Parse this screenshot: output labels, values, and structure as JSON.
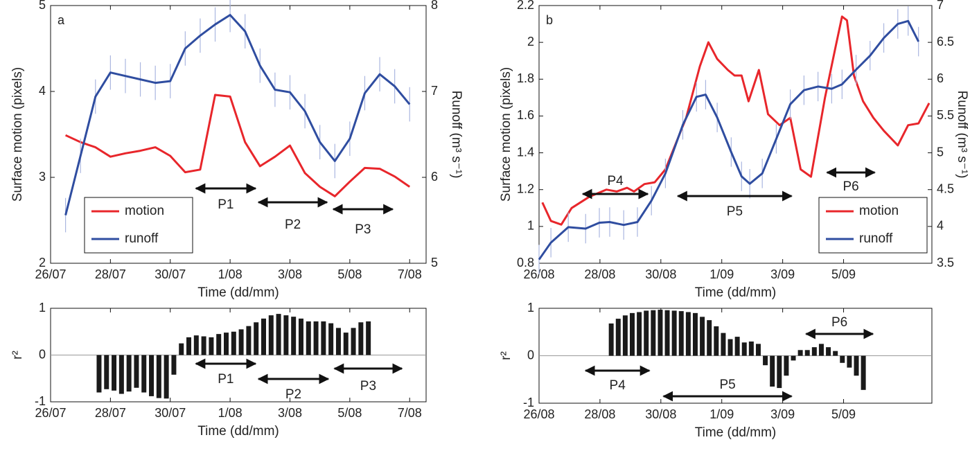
{
  "chart_data": [
    {
      "type": "line",
      "panel_label": "a",
      "xlabel": "Time (dd/mm)",
      "ylabel": "Surface motion (pixels)",
      "y2label": "Runoff (m³ s⁻¹)",
      "xlim": [
        0,
        12.55
      ],
      "xticks": [
        {
          "value": 0,
          "label": "26/07"
        },
        {
          "value": 2,
          "label": "28/07"
        },
        {
          "value": 4,
          "label": "30/07"
        },
        {
          "value": 6,
          "label": "1/08"
        },
        {
          "value": 8,
          "label": "3/08"
        },
        {
          "value": 10,
          "label": "5/08"
        },
        {
          "value": 12,
          "label": "7/08"
        }
      ],
      "ylim": [
        2,
        5
      ],
      "yticks": [
        2,
        3,
        4,
        5
      ],
      "y2lim": [
        5,
        8
      ],
      "y2ticks": [
        5,
        6,
        7,
        8
      ],
      "legend": "lower left",
      "x": [
        0.5,
        1,
        1.5,
        2,
        2.5,
        3,
        3.5,
        4,
        4.5,
        5,
        5.5,
        6,
        6.5,
        7,
        7.5,
        8,
        8.5,
        9,
        9.5,
        10,
        10.5,
        11,
        11.5,
        12
      ],
      "series": [
        {
          "name": "motion",
          "color": "#e8262b",
          "values": [
            3.49,
            3.41,
            3.35,
            3.24,
            3.28,
            3.31,
            3.35,
            3.25,
            3.06,
            3.09,
            3.96,
            3.94,
            3.41,
            3.13,
            3.24,
            3.37,
            3.05,
            2.89,
            2.78,
            2.95,
            3.11,
            3.1,
            3.01,
            2.89
          ]
        },
        {
          "name": "runoff",
          "color": "#2f4da0",
          "axis": "y2",
          "error": 0.2,
          "values": [
            5.56,
            6.25,
            6.94,
            7.22,
            7.18,
            7.14,
            7.1,
            7.12,
            7.5,
            7.65,
            7.78,
            7.89,
            7.7,
            7.3,
            7.02,
            6.99,
            6.77,
            6.41,
            6.19,
            6.45,
            6.98,
            7.2,
            7.06,
            6.85
          ]
        }
      ],
      "periods": [
        {
          "label": "P1",
          "start": 4.79,
          "end": 6.92
        },
        {
          "label": "P2",
          "start": 6.88,
          "end": 9.31
        },
        {
          "label": "P3",
          "start": 9.38,
          "end": 11.5
        }
      ]
    },
    {
      "type": "bar",
      "xlabel": "Time (dd/mm)",
      "ylabel": "r²",
      "color": "#1a1a1a",
      "xlim": [
        0,
        12.55
      ],
      "xticks": [
        {
          "value": 0,
          "label": "26/07"
        },
        {
          "value": 2,
          "label": "28/07"
        },
        {
          "value": 4,
          "label": "30/07"
        },
        {
          "value": 6,
          "label": "1/08"
        },
        {
          "value": 8,
          "label": "3/08"
        },
        {
          "value": 10,
          "label": "5/08"
        },
        {
          "value": 12,
          "label": "7/08"
        }
      ],
      "ylim": [
        -1,
        1
      ],
      "yticks": [
        -1,
        0,
        1
      ],
      "x": [
        1.62,
        1.87,
        2.12,
        2.37,
        2.62,
        2.87,
        3.12,
        3.37,
        3.62,
        3.87,
        4.12,
        4.37,
        4.62,
        4.87,
        5.12,
        5.37,
        5.62,
        5.87,
        6.12,
        6.37,
        6.62,
        6.87,
        7.12,
        7.37,
        7.62,
        7.87,
        8.12,
        8.37,
        8.62,
        8.87,
        9.12,
        9.37,
        9.62,
        9.87,
        10.12,
        10.37,
        10.62
      ],
      "values": [
        -0.8,
        -0.73,
        -0.76,
        -0.83,
        -0.78,
        -0.7,
        -0.8,
        -0.88,
        -0.92,
        -0.93,
        -0.42,
        0.25,
        0.38,
        0.42,
        0.4,
        0.38,
        0.45,
        0.48,
        0.5,
        0.55,
        0.62,
        0.7,
        0.78,
        0.85,
        0.88,
        0.85,
        0.82,
        0.78,
        0.72,
        0.72,
        0.72,
        0.68,
        0.58,
        0.48,
        0.58,
        0.7,
        0.72
      ],
      "periods": [
        {
          "label": "P1",
          "start": 4.79,
          "end": 6.92
        },
        {
          "label": "P2",
          "start": 6.88,
          "end": 9.35
        },
        {
          "label": "P3",
          "start": 9.42,
          "end": 11.81
        }
      ]
    },
    {
      "type": "line",
      "panel_label": "b",
      "xlabel": "Time (dd/mm)",
      "ylabel": "Surface motion (pixels)",
      "y2label": "Runoff (m³ s⁻¹)",
      "xlim": [
        0,
        12.9
      ],
      "xticks": [
        {
          "value": 0,
          "label": "26/08"
        },
        {
          "value": 2,
          "label": "28/08"
        },
        {
          "value": 4,
          "label": "30/08"
        },
        {
          "value": 6,
          "label": "1/09"
        },
        {
          "value": 8,
          "label": "3/09"
        },
        {
          "value": 10,
          "label": "5/09"
        }
      ],
      "ylim": [
        0.8,
        2.2
      ],
      "yticks": [
        0.8,
        1,
        1.2,
        1.4,
        1.6,
        1.8,
        2,
        2.2
      ],
      "y2lim": [
        3.5,
        7
      ],
      "y2ticks": [
        3.5,
        4,
        4.5,
        5,
        5.5,
        6,
        6.5,
        7
      ],
      "legend": "lower right",
      "series": [
        {
          "name": "motion",
          "color": "#e8262b",
          "x": [
            0.11,
            0.39,
            0.73,
            1.07,
            1.64,
            2.21,
            2.55,
            2.89,
            3.12,
            3.46,
            3.8,
            4.15,
            4.83,
            5.28,
            5.56,
            5.85,
            6.2,
            6.42,
            6.65,
            6.88,
            7.22,
            7.52,
            7.9,
            8.25,
            8.59,
            8.93,
            9.39,
            9.73,
            9.95,
            10.11,
            10.34,
            10.64,
            10.98,
            11.32,
            11.78,
            12.12,
            12.46,
            12.81
          ],
          "values": [
            1.13,
            1.03,
            1.01,
            1.1,
            1.16,
            1.2,
            1.19,
            1.21,
            1.19,
            1.23,
            1.24,
            1.31,
            1.59,
            1.87,
            2.0,
            1.91,
            1.85,
            1.82,
            1.82,
            1.68,
            1.85,
            1.61,
            1.55,
            1.59,
            1.31,
            1.27,
            1.7,
            1.97,
            2.14,
            2.12,
            1.82,
            1.68,
            1.59,
            1.52,
            1.44,
            1.55,
            1.56,
            1.67
          ]
        },
        {
          "name": "runoff",
          "color": "#2f4da0",
          "axis": "y2",
          "error": 0.2,
          "x": [
            0,
            0.39,
            0.96,
            1.53,
            1.98,
            2.32,
            2.78,
            3.23,
            3.69,
            4.15,
            4.72,
            5.17,
            5.47,
            5.85,
            6.31,
            6.65,
            6.92,
            7.33,
            7.79,
            8.25,
            8.7,
            9.16,
            9.61,
            9.95,
            10.41,
            10.87,
            11.32,
            11.78,
            12.12,
            12.46
          ],
          "values": [
            3.55,
            3.78,
            3.99,
            3.97,
            4.05,
            4.06,
            4.02,
            4.06,
            4.35,
            4.72,
            5.38,
            5.76,
            5.79,
            5.48,
            5.01,
            4.68,
            4.58,
            4.72,
            5.19,
            5.66,
            5.85,
            5.9,
            5.87,
            5.93,
            6.13,
            6.32,
            6.56,
            6.75,
            6.79,
            6.51
          ]
        }
      ],
      "periods": [
        {
          "label": "P4",
          "start": 1.37,
          "end": 3.64
        },
        {
          "label": "P5",
          "start": 4.49,
          "end": 8.36
        },
        {
          "label": "P6",
          "start": 9.39,
          "end": 11.09
        }
      ]
    },
    {
      "type": "bar",
      "xlabel": "Time (dd/mm)",
      "ylabel": "r²",
      "color": "#1a1a1a",
      "xlim": [
        0,
        12.9
      ],
      "xticks": [
        {
          "value": 0,
          "label": "26/08"
        },
        {
          "value": 2,
          "label": "28/08"
        },
        {
          "value": 4,
          "label": "30/08"
        },
        {
          "value": 6,
          "label": "1/09"
        },
        {
          "value": 8,
          "label": "3/09"
        },
        {
          "value": 10,
          "label": "5/09"
        }
      ],
      "ylim": [
        -1,
        1
      ],
      "yticks": [
        -1,
        0,
        1
      ],
      "x": [
        2.37,
        2.6,
        2.83,
        3.06,
        3.29,
        3.52,
        3.75,
        3.98,
        4.21,
        4.44,
        4.67,
        4.9,
        5.13,
        5.36,
        5.59,
        5.82,
        6.05,
        6.28,
        6.51,
        6.74,
        6.97,
        7.2,
        7.43,
        7.66,
        7.89,
        8.12,
        8.35,
        8.58,
        8.81,
        9.04,
        9.27,
        9.5,
        9.73,
        9.96,
        10.19,
        10.42,
        10.65
      ],
      "values": [
        0.68,
        0.78,
        0.85,
        0.9,
        0.92,
        0.95,
        0.96,
        0.97,
        0.96,
        0.95,
        0.94,
        0.92,
        0.9,
        0.82,
        0.75,
        0.62,
        0.48,
        0.35,
        0.4,
        0.28,
        0.3,
        0.25,
        -0.2,
        -0.65,
        -0.68,
        -0.42,
        -0.1,
        0.12,
        0.12,
        0.18,
        0.25,
        0.18,
        0.1,
        -0.15,
        -0.25,
        -0.42,
        -0.72
      ],
      "periods": [
        {
          "label": "P4",
          "start": 1.46,
          "end": 3.69
        },
        {
          "label": "P5",
          "start": 4.02,
          "end": 8.36
        },
        {
          "label": "P6",
          "start": 8.7,
          "end": 11.03
        }
      ]
    }
  ]
}
